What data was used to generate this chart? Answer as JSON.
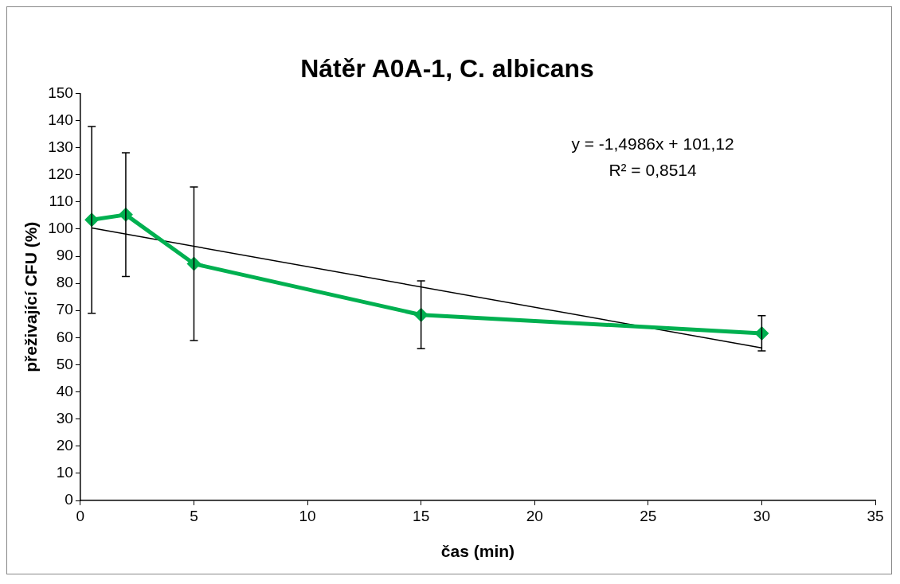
{
  "chart_data": {
    "type": "line",
    "title": "Nátěr A0A-1, C. albicans",
    "xlabel": "čas (min)",
    "ylabel": "přeživající CFU (%)",
    "x": [
      0.5,
      2,
      5,
      15,
      30
    ],
    "series": [
      {
        "color": "#00b050",
        "values": [
          103.4,
          105.3,
          87.2,
          68.4,
          61.6
        ],
        "errors": [
          34.4,
          22.8,
          28.3,
          12.5,
          6.5
        ],
        "marker": "diamond",
        "line_style": "solid"
      },
      {
        "type": "line",
        "color": "#000000",
        "x": [
          0.5,
          30
        ],
        "values": [
          100.4,
          56.2
        ],
        "marker": "none",
        "line_style": "solid"
      }
    ],
    "annotations": [
      "y = -1,4986x + 101,12",
      "R² = 0,8514"
    ],
    "xlim": [
      0,
      35
    ],
    "xticks": [
      0,
      5,
      10,
      15,
      20,
      25,
      30,
      35
    ],
    "ylim": [
      0,
      150
    ],
    "yticks": [
      0,
      10,
      20,
      30,
      40,
      50,
      60,
      70,
      80,
      90,
      100,
      110,
      120,
      130,
      140,
      150
    ],
    "grid": false,
    "legend": false
  }
}
